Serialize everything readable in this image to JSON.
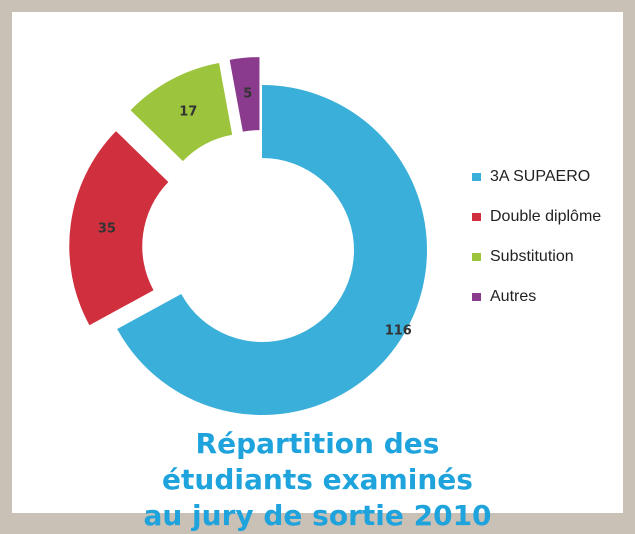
{
  "chart_data": {
    "type": "donut",
    "title": "Répartition des étudiants examinés au jury de sortie 2010",
    "categories": [
      "3A SUPAERO",
      "Double diplôme",
      "Substitution",
      "Autres"
    ],
    "values": [
      116,
      35,
      17,
      5
    ],
    "colors": [
      "#3aafd9",
      "#d0303e",
      "#9cc43c",
      "#8b3b8e"
    ],
    "legend": "right"
  }
}
